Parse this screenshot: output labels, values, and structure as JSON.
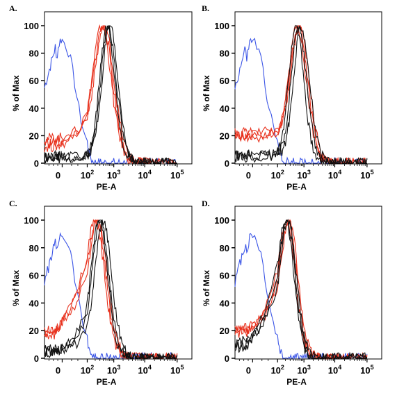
{
  "colors": {
    "blue": "#3b55e6",
    "red": "#e8321e",
    "black": "#111111",
    "frame": "#000000"
  },
  "chart_data": [
    {
      "type": "line",
      "panel": "A.",
      "xlabel": "PE-A",
      "ylabel": "% of Max",
      "xscale": "biexponential",
      "x_tick_labels": [
        {
          "base": "0",
          "exp": ""
        },
        {
          "base": "10",
          "exp": "2"
        },
        {
          "base": "10",
          "exp": "3"
        },
        {
          "base": "10",
          "exp": "4"
        },
        {
          "base": "10",
          "exp": "5"
        }
      ],
      "y_tick_labels": [
        "0",
        "20",
        "40",
        "60",
        "80",
        "100"
      ],
      "ylim": [
        0,
        100
      ],
      "series": [
        {
          "color": "blue",
          "peak_log10": 1.7,
          "width": 0.9,
          "floor": 55
        },
        {
          "color": "red",
          "peak_log10": 2.55,
          "width": 0.5,
          "floor": 12
        },
        {
          "color": "red",
          "peak_log10": 2.6,
          "width": 0.5,
          "floor": 15
        },
        {
          "color": "red",
          "peak_log10": 2.65,
          "width": 0.5,
          "floor": 18
        },
        {
          "color": "black",
          "peak_log10": 2.75,
          "width": 0.4,
          "floor": 3
        },
        {
          "color": "black",
          "peak_log10": 2.8,
          "width": 0.4,
          "floor": 4
        },
        {
          "color": "black",
          "peak_log10": 2.85,
          "width": 0.4,
          "floor": 5
        }
      ]
    },
    {
      "type": "line",
      "panel": "B.",
      "xlabel": "PE-A",
      "ylabel": "% of Max",
      "xscale": "biexponential",
      "x_tick_labels": [
        {
          "base": "0",
          "exp": ""
        },
        {
          "base": "10",
          "exp": "2"
        },
        {
          "base": "10",
          "exp": "3"
        },
        {
          "base": "10",
          "exp": "4"
        },
        {
          "base": "10",
          "exp": "5"
        }
      ],
      "y_tick_labels": [
        "0",
        "20",
        "40",
        "60",
        "80",
        "100"
      ],
      "ylim": [
        0,
        100
      ],
      "series": [
        {
          "color": "blue",
          "peak_log10": 1.7,
          "width": 0.9,
          "floor": 55
        },
        {
          "color": "red",
          "peak_log10": 2.75,
          "width": 0.45,
          "floor": 18
        },
        {
          "color": "red",
          "peak_log10": 2.8,
          "width": 0.45,
          "floor": 20
        },
        {
          "color": "red",
          "peak_log10": 2.85,
          "width": 0.45,
          "floor": 22
        },
        {
          "color": "black",
          "peak_log10": 2.7,
          "width": 0.4,
          "floor": 4
        },
        {
          "color": "black",
          "peak_log10": 2.8,
          "width": 0.4,
          "floor": 5
        },
        {
          "color": "black",
          "peak_log10": 2.9,
          "width": 0.4,
          "floor": 6
        }
      ]
    },
    {
      "type": "line",
      "panel": "C.",
      "xlabel": "PE-A",
      "ylabel": "% of Max",
      "xscale": "biexponential",
      "x_tick_labels": [
        {
          "base": "0",
          "exp": ""
        },
        {
          "base": "10",
          "exp": "2"
        },
        {
          "base": "10",
          "exp": "3"
        },
        {
          "base": "10",
          "exp": "4"
        },
        {
          "base": "10",
          "exp": "5"
        }
      ],
      "y_tick_labels": [
        "0",
        "20",
        "40",
        "60",
        "80",
        "100"
      ],
      "ylim": [
        0,
        100
      ],
      "series": [
        {
          "color": "blue",
          "peak_log10": 1.7,
          "width": 0.9,
          "floor": 55
        },
        {
          "color": "red",
          "peak_log10": 2.3,
          "width": 0.5,
          "floor": 15
        },
        {
          "color": "red",
          "peak_log10": 2.35,
          "width": 0.5,
          "floor": 18
        },
        {
          "color": "red",
          "peak_log10": 2.4,
          "width": 0.5,
          "floor": 20
        },
        {
          "color": "black",
          "peak_log10": 2.45,
          "width": 0.45,
          "floor": 4
        },
        {
          "color": "black",
          "peak_log10": 2.5,
          "width": 0.45,
          "floor": 5
        },
        {
          "color": "black",
          "peak_log10": 2.6,
          "width": 0.45,
          "floor": 6
        }
      ]
    },
    {
      "type": "line",
      "panel": "D.",
      "xlabel": "PE-A",
      "ylabel": "% of Max",
      "xscale": "biexponential",
      "x_tick_labels": [
        {
          "base": "0",
          "exp": ""
        },
        {
          "base": "10",
          "exp": "2"
        },
        {
          "base": "10",
          "exp": "3"
        },
        {
          "base": "10",
          "exp": "4"
        },
        {
          "base": "10",
          "exp": "5"
        }
      ],
      "y_tick_labels": [
        "0",
        "20",
        "40",
        "60",
        "80",
        "100"
      ],
      "ylim": [
        0,
        100
      ],
      "series": [
        {
          "color": "blue",
          "peak_log10": 1.7,
          "width": 0.9,
          "floor": 55
        },
        {
          "color": "red",
          "peak_log10": 2.35,
          "width": 0.45,
          "floor": 18
        },
        {
          "color": "red",
          "peak_log10": 2.4,
          "width": 0.45,
          "floor": 20
        },
        {
          "color": "red",
          "peak_log10": 2.45,
          "width": 0.45,
          "floor": 22
        },
        {
          "color": "black",
          "peak_log10": 2.3,
          "width": 0.45,
          "floor": 8
        },
        {
          "color": "black",
          "peak_log10": 2.35,
          "width": 0.45,
          "floor": 10
        },
        {
          "color": "black",
          "peak_log10": 2.4,
          "width": 0.45,
          "floor": 12
        }
      ]
    }
  ]
}
